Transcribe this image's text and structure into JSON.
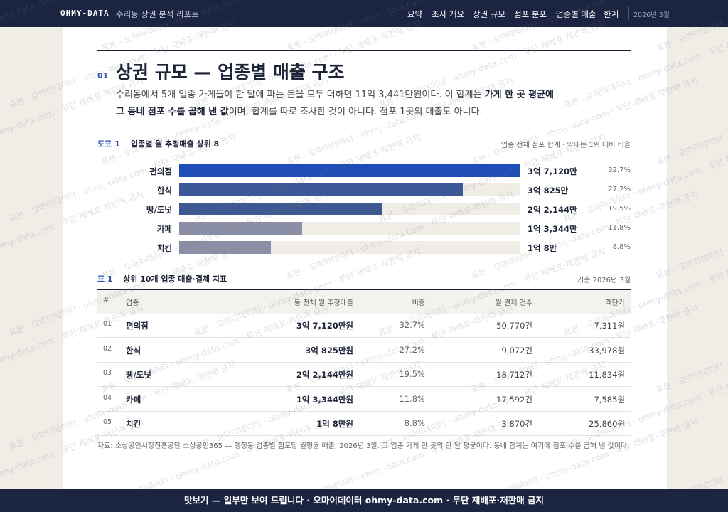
{
  "nav": {
    "logo": "OHMY-DATA",
    "report": "수리동 상권 분석 리포트",
    "links": [
      "요약",
      "조사 개요",
      "상권 규모",
      "점포 분포",
      "업종별 매출",
      "한계"
    ],
    "date": "2026년 3월"
  },
  "section": {
    "number": "01",
    "title": "상권 규모 — 업종별 매출 구조",
    "intro": {
      "before": "수리동에서 5개 업종 가게들이 한 달에 파는 돈을 모두 더하면 11억 3,441만원이다. 이 합계는 ",
      "bold": "가게 한 곳 평균에 그 동네 점포 수를 곱해 낸 값",
      "after": "이며, 합계를 따로 조사한 것이 아니다. 점포 1곳의 매출도 아니다."
    }
  },
  "figure": {
    "tag": "도표 1",
    "title": "업종별 월 추정매출 상위 8",
    "note": "업종 전체 점포 합계 · 막대는 1위 대비 비율",
    "bars": [
      {
        "label": "편의점",
        "value": 371200000,
        "value_label": "3억 7,120만",
        "share": "32.7%",
        "color": "#1f4db8"
      },
      {
        "label": "한식",
        "value": 308250000,
        "value_label": "3억 825만",
        "share": "27.2%",
        "color": "#3b5797"
      },
      {
        "label": "빵/도넛",
        "value": 221440000,
        "value_label": "2억 2,144만",
        "share": "19.5%",
        "color": "#3e5891"
      },
      {
        "label": "카페",
        "value": 133440000,
        "value_label": "1억 3,344만",
        "share": "11.8%",
        "color": "#8a8fa5"
      },
      {
        "label": "치킨",
        "value": 100080000,
        "value_label": "1억 8만",
        "share": "8.8%",
        "color": "#8a8fa5"
      }
    ]
  },
  "table": {
    "tag": "표 1",
    "title": "상위 10개 업종 매출·결제 지표",
    "note": "기준 2026년 3월",
    "columns": [
      "#",
      "업종",
      "동 전체 월 추정매출",
      "비중",
      "월 결제 건수",
      "객단가"
    ],
    "rows": [
      [
        "01",
        "편의점",
        "3억 7,120만원",
        "32.7%",
        "50,770건",
        "7,311원"
      ],
      [
        "02",
        "한식",
        "3억 825만원",
        "27.2%",
        "9,072건",
        "33,978원"
      ],
      [
        "03",
        "빵/도넛",
        "2억 2,144만원",
        "19.5%",
        "18,712건",
        "11,834원"
      ],
      [
        "04",
        "카페",
        "1억 3,344만원",
        "11.8%",
        "17,592건",
        "7,585원"
      ],
      [
        "05",
        "치킨",
        "1억 8만원",
        "8.8%",
        "3,870건",
        "25,860원"
      ]
    ]
  },
  "source": "자료: 소상공인시장진흥공단 소상공인365 — 행정동·업종별 점포당 월평균 매출, 2026년 3월. 그 업종 가게 한 곳의 한 달 평균이다. 동네 합계는 여기에 점포 수를 곱해 낸 값이다.",
  "footer": "맛보기 — 일부만 보여 드립니다 · 오마이데이터 ohmy-data.com · 무단 재배포·재판매 금지",
  "watermark": "표본 · 오마이데이터 · ohmy-data.com · 무단 재배포·재판매 금지"
}
